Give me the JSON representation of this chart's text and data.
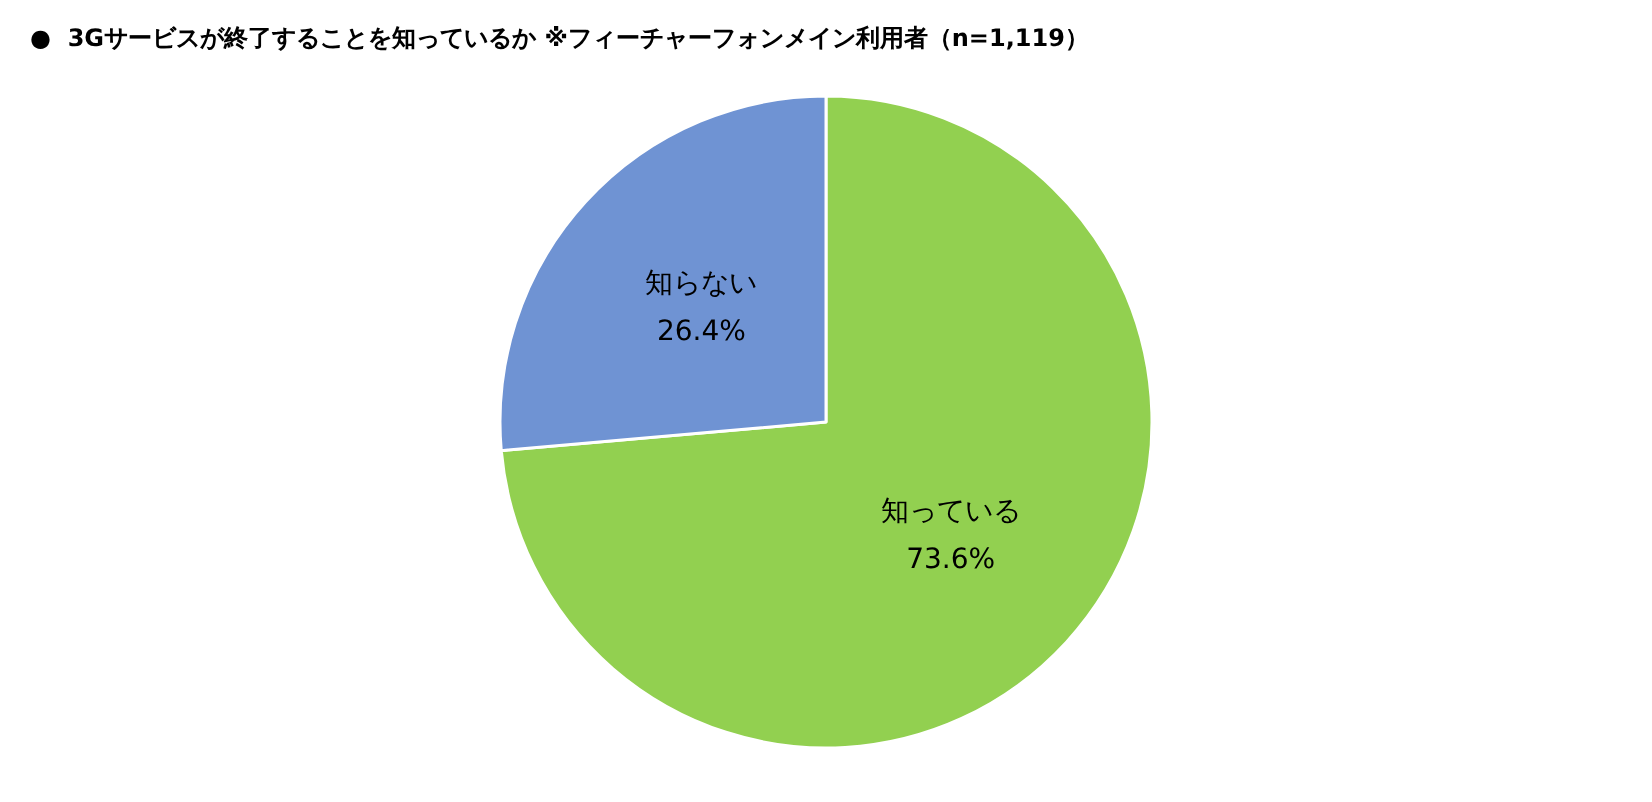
{
  "chart_data": {
    "type": "pie",
    "title": "●  3Gサービスが終了することを知っているか ※フィーチャーフォンメイン利用者（n=1,119）",
    "categories": [
      "知っている",
      "知らない"
    ],
    "values": [
      73.6,
      26.4
    ],
    "colors": [
      "#92d050",
      "#6f93d3"
    ],
    "value_labels": [
      "73.6%",
      "26.4%"
    ],
    "legend": false
  }
}
